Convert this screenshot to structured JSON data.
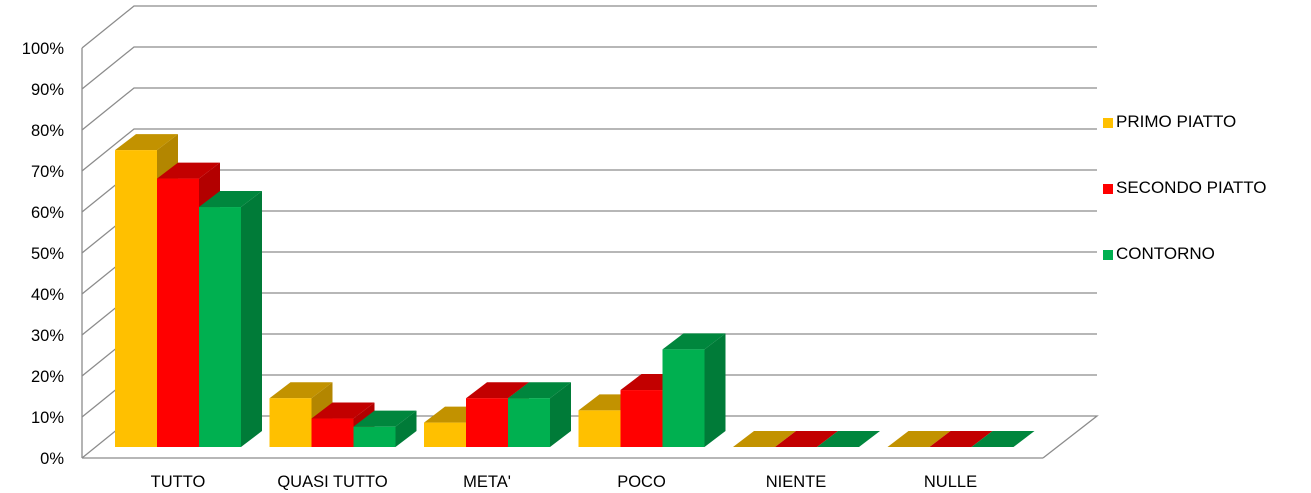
{
  "chart_data": {
    "type": "bar",
    "categories": [
      "TUTTO",
      "QUASI TUTTO",
      "META'",
      "POCO",
      "NIENTE",
      "NULLE"
    ],
    "series": [
      {
        "name": "PRIMO PIATTO",
        "color": "#FFC000",
        "values": [
          73,
          12,
          6,
          9,
          0,
          0
        ]
      },
      {
        "name": "SECONDO PIATTO",
        "color": "#FF0000",
        "values": [
          66,
          7,
          12,
          14,
          0,
          0
        ]
      },
      {
        "name": "CONTORNO",
        "color": "#00B050",
        "values": [
          59,
          5,
          12,
          24,
          0,
          0
        ]
      }
    ],
    "y_ticks": [
      "0%",
      "10%",
      "20%",
      "30%",
      "40%",
      "50%",
      "60%",
      "70%",
      "80%",
      "90%",
      "100%"
    ],
    "ylim": [
      0,
      100
    ],
    "grid": true,
    "legend": "right",
    "style": "3d-clustered-column"
  }
}
